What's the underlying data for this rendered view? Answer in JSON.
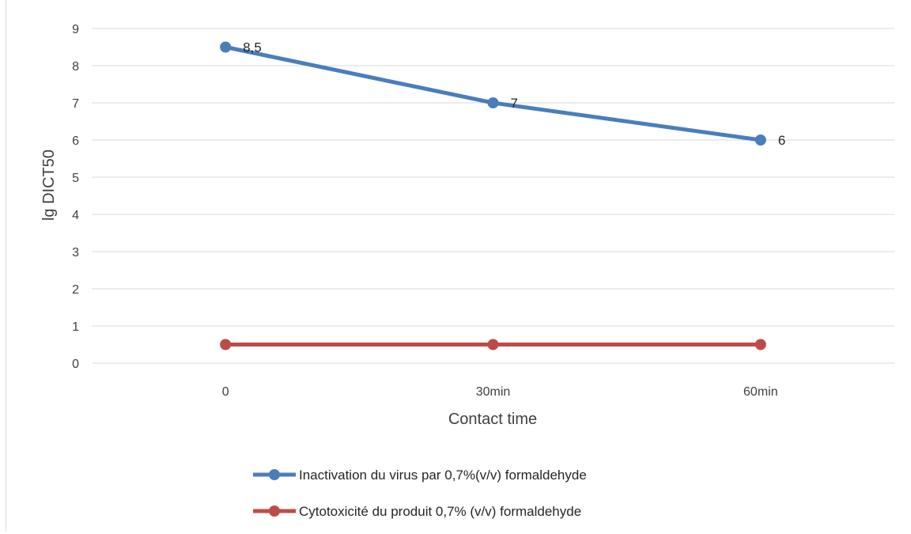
{
  "chart_data": {
    "type": "line",
    "title": "",
    "xlabel": "Contact time",
    "ylabel": "lg DICT50",
    "categories": [
      "0",
      "30min",
      "60min"
    ],
    "ylim": [
      0,
      9
    ],
    "yticks": [
      "0",
      "1",
      "2",
      "3",
      "4",
      "5",
      "6",
      "7",
      "8",
      "9"
    ],
    "grid": true,
    "legend_position": "bottom",
    "series": [
      {
        "name": "Inactivation du virus par 0,7%(v/v) formaldehyde",
        "values": [
          8.5,
          7,
          6
        ],
        "labels": [
          "8,5",
          "7",
          "6"
        ],
        "color": "#4a7ebb"
      },
      {
        "name": "Cytotoxicité du produit 0,7% (v/v) formaldehyde",
        "values": [
          0.5,
          0.5,
          0.5
        ],
        "labels": [
          "",
          "",
          ""
        ],
        "color": "#be4b48"
      }
    ]
  }
}
